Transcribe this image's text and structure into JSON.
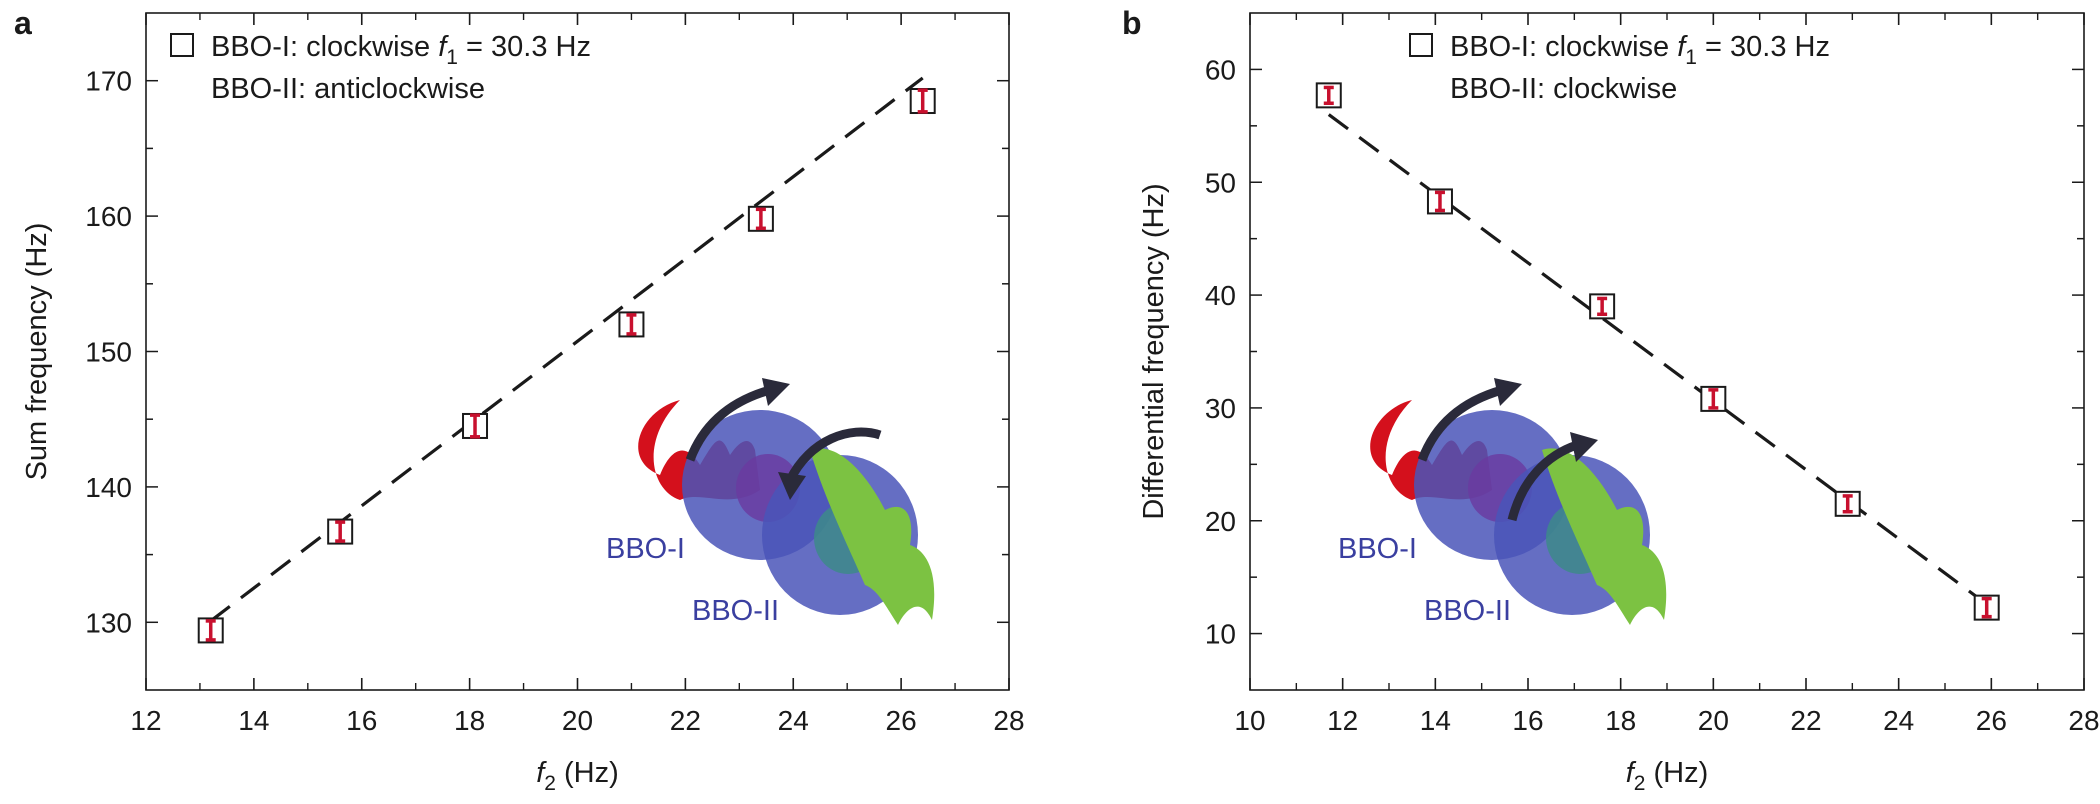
{
  "chart_data": [
    {
      "type": "scatter",
      "panel_label": "a",
      "ylabel": "Sum frequency (Hz)",
      "xlabel_var": "f",
      "xlabel_sub": "2",
      "xlabel_unit": " (Hz)",
      "xlim": [
        12,
        28
      ],
      "ylim": [
        125,
        175
      ],
      "xticks": [
        12,
        14,
        16,
        18,
        20,
        22,
        24,
        26,
        28
      ],
      "yticks": [
        130,
        140,
        150,
        160,
        170
      ],
      "legend_line1_pre": "BBO-I: clockwise ",
      "legend_f": "f",
      "legend_sub": "1",
      "legend_line1_post": " = 30.3 Hz",
      "legend_line2": "BBO-II: anticlockwise",
      "points": [
        {
          "x": 13.2,
          "y": 129.4,
          "err": 0.7
        },
        {
          "x": 15.6,
          "y": 136.7,
          "err": 0.7
        },
        {
          "x": 18.1,
          "y": 144.5,
          "err": 0.8
        },
        {
          "x": 21.0,
          "y": 152.0,
          "err": 0.7
        },
        {
          "x": 23.4,
          "y": 159.8,
          "err": 0.7
        },
        {
          "x": 26.4,
          "y": 168.5,
          "err": 0.8
        }
      ],
      "fit_line": {
        "x": [
          13.2,
          26.4
        ],
        "y": [
          130.1,
          170.2
        ]
      },
      "illustration_labels": [
        "BBO-I",
        "BBO-II"
      ],
      "bbo2_arrow": "anticlockwise",
      "colors": {
        "marker": "#c8102e",
        "box": "#1a1a1a",
        "fit": "#1a1a1a",
        "bbo": "#4a55b8",
        "red_wave": "#d4101c",
        "green_wave": "#7cc242"
      }
    },
    {
      "type": "scatter",
      "panel_label": "b",
      "ylabel": "Differential frequency (Hz)",
      "xlabel_var": "f",
      "xlabel_sub": "2",
      "xlabel_unit": " (Hz)",
      "xlim": [
        10,
        28
      ],
      "ylim": [
        5,
        65
      ],
      "xticks": [
        10,
        12,
        14,
        16,
        18,
        20,
        22,
        24,
        26,
        28
      ],
      "yticks": [
        10,
        20,
        30,
        40,
        50,
        60
      ],
      "legend_line1_pre": "BBO-I: clockwise ",
      "legend_f": "f",
      "legend_sub": "1",
      "legend_line1_post": " = 30.3 Hz",
      "legend_line2": "BBO-II: clockwise",
      "points": [
        {
          "x": 11.7,
          "y": 57.7,
          "err": 0.7
        },
        {
          "x": 14.1,
          "y": 48.3,
          "err": 0.8
        },
        {
          "x": 17.6,
          "y": 39.0,
          "err": 0.7
        },
        {
          "x": 20.0,
          "y": 30.8,
          "err": 0.8
        },
        {
          "x": 22.9,
          "y": 21.5,
          "err": 0.7
        },
        {
          "x": 25.9,
          "y": 12.3,
          "err": 0.8
        }
      ],
      "fit_line": {
        "x": [
          11.7,
          25.9
        ],
        "y": [
          56.0,
          12.6
        ]
      },
      "illustration_labels": [
        "BBO-I",
        "BBO-II"
      ],
      "bbo2_arrow": "clockwise",
      "colors": {
        "marker": "#c8102e",
        "box": "#1a1a1a",
        "fit": "#1a1a1a",
        "bbo": "#4a55b8",
        "red_wave": "#d4101c",
        "green_wave": "#7cc242"
      }
    }
  ]
}
